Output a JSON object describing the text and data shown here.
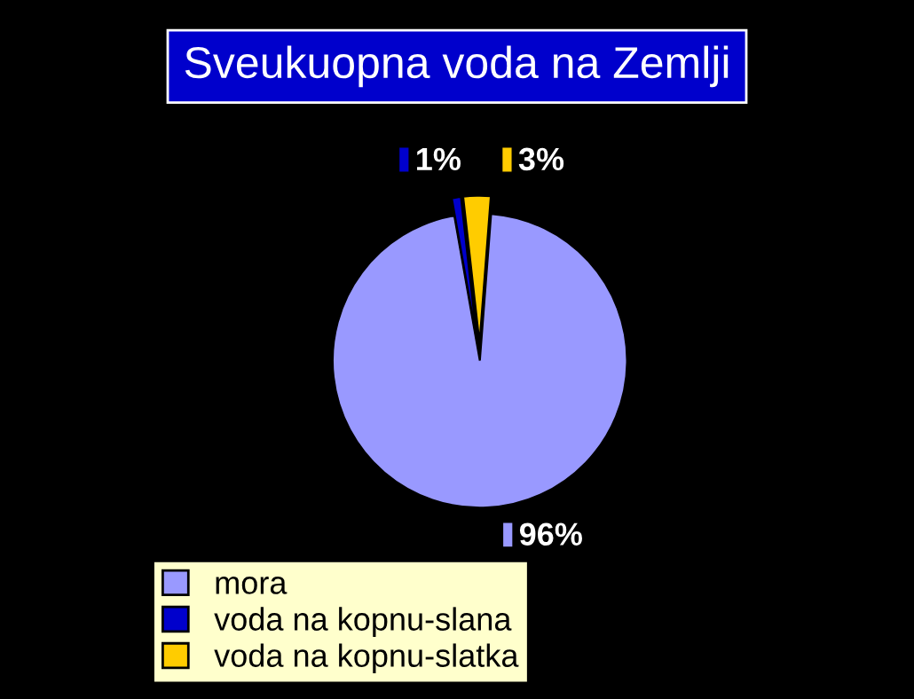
{
  "chart_data": {
    "type": "pie",
    "title": "Sveukuopna voda na Zemlji",
    "categories": [
      "mora",
      "voda na kopnu-slana",
      "voda na kopnu-slatka"
    ],
    "values": [
      96,
      1,
      3
    ],
    "colors": [
      "#9999ff",
      "#0000cc",
      "#ffcc00"
    ],
    "value_labels": [
      "96%",
      "1%",
      "3%"
    ],
    "legend": "bottom left"
  }
}
